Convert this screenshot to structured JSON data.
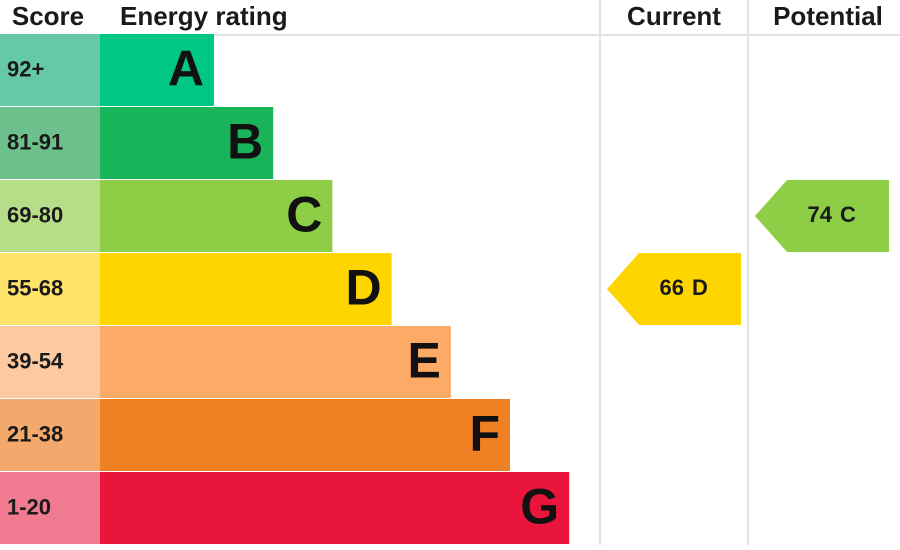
{
  "header": {
    "score": "Score",
    "rating": "Energy rating",
    "current": "Current",
    "potential": "Potential"
  },
  "bands": [
    {
      "score": "92+",
      "letter": "A",
      "color": "#00c781",
      "score_color": "#66c9a6"
    },
    {
      "score": "81-91",
      "letter": "B",
      "color": "#19b459",
      "score_color": "#6cc08c"
    },
    {
      "score": "69-80",
      "letter": "C",
      "color": "#8dce46",
      "score_color": "#b6de88"
    },
    {
      "score": "55-68",
      "letter": "D",
      "color": "#ffd500",
      "score_color": "#ffe26a"
    },
    {
      "score": "39-54",
      "letter": "E",
      "color": "#fcaa65",
      "score_color": "#fdc9a0"
    },
    {
      "score": "21-38",
      "letter": "F",
      "color": "#ef8023",
      "score_color": "#f4a96c"
    },
    {
      "score": "1-20",
      "letter": "G",
      "color": "#e9153b",
      "score_color": "#f07a90"
    }
  ],
  "current": {
    "score": 66,
    "letter": "D"
  },
  "potential": {
    "score": 74,
    "letter": "C"
  }
}
